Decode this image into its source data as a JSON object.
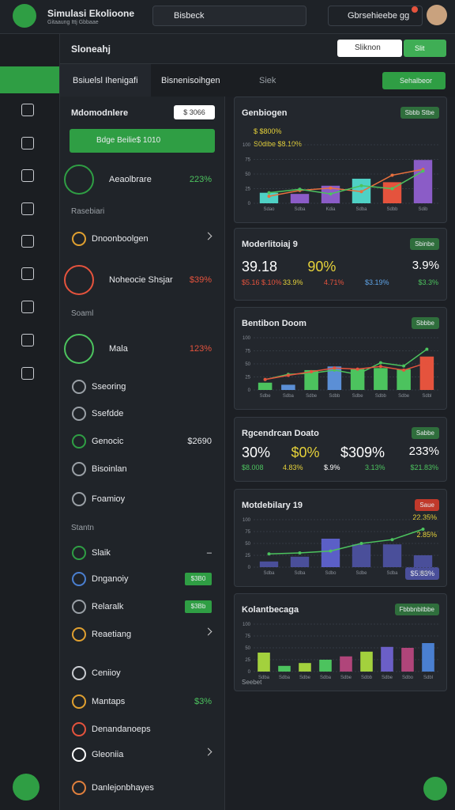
{
  "header": {
    "title": "Simulasi Ekolioone",
    "subtitle": "Gitaaung Ittj Gbbaae",
    "search": "Bisbeck",
    "account": "Gbrsehieebe gg"
  },
  "toolbar": {
    "title": "Sloneahj",
    "search": "Sliknon",
    "button": "Slit"
  },
  "tabs": [
    "Bsiuelsl Ihenigafi",
    "Bisnenisoihgen",
    "Siek"
  ],
  "tab_button": "Sehalbeor",
  "sidebar": {
    "title": "Mdomodnlere",
    "badge": "$ 3066",
    "promo": "Bdge Beilie$ 1010",
    "items": [
      {
        "label": "Aeaolbrare",
        "value": "223%",
        "color": "#4cc35e"
      },
      {
        "label": "Rasebiari",
        "section": true
      },
      {
        "label": "Dnoonboolgen"
      },
      {
        "label": "Noheocie Shsjar",
        "value": "$39%",
        "color": "#e5533d"
      },
      {
        "label": "Soaml",
        "section": true
      },
      {
        "label": "Mala",
        "value": "123%",
        "color": "#e5533d"
      },
      {
        "label": "Sseoring"
      },
      {
        "label": "Ssefdde"
      },
      {
        "label": "Genocic",
        "value": "$2690",
        "color": "#e8eaed"
      },
      {
        "label": "Bisoinlan"
      },
      {
        "label": "Foamioy"
      },
      {
        "label": "Stantn",
        "section": true
      },
      {
        "label": "Slaik",
        "value": "–",
        "color": "#e8eaed"
      },
      {
        "label": "Dnganoiy",
        "badge": "$3B0"
      },
      {
        "label": "Relaralk",
        "badge": "$3Bb"
      },
      {
        "label": "Reaetiang"
      },
      {
        "label": "Ceniioy"
      },
      {
        "label": "Mantaps",
        "value": "$3%",
        "color": "#4cc35e"
      },
      {
        "label": "Denandanoeps"
      },
      {
        "label": "Gleoniia"
      },
      {
        "label": "Danlejonbhayes"
      }
    ]
  },
  "cards": [
    {
      "title": "Genbiogen",
      "badge": "Sbbb Stbe",
      "legend": [
        "$ $800%",
        "S0dibe $8.10%"
      ],
      "chart": {
        "type": "bar",
        "categories": [
          "Sdao",
          "Sdba",
          "Kdia",
          "Sdba",
          "Sdbb",
          "Sdib"
        ],
        "values": [
          18,
          16,
          30,
          42,
          36,
          74
        ],
        "colors": [
          "#4fd1c5",
          "#8b5cc7",
          "#8b5cc7",
          "#4fd1c5",
          "#e5533d",
          "#8b5cc7"
        ],
        "lines": [
          {
            "color": "#e8703d",
            "values": [
              12,
              22,
              26,
              20,
              48,
              58
            ]
          },
          {
            "color": "#4cc35e",
            "values": [
              18,
              24,
              16,
              30,
              25,
              55
            ]
          }
        ],
        "ylim": [
          0,
          100
        ],
        "yticks": [
          0,
          25,
          50,
          75,
          100
        ]
      }
    },
    {
      "title": "Moderlitoiaj 9",
      "badge": "Sbinbe",
      "stats": [
        {
          "text": "39.18",
          "color": "#ffffff"
        },
        {
          "text": "90%",
          "color": "#e6d23a"
        },
        {
          "text": "3.9%",
          "color": "#ffffff"
        }
      ],
      "row": [
        {
          "text": "$5.16 $.10%",
          "color": "#e5533d"
        },
        {
          "text": "33.9%",
          "color": "#e6d23a"
        },
        {
          "text": "4.71%",
          "color": "#e5533d"
        },
        {
          "text": "$3.19%",
          "color": "#5ea3e6"
        },
        {
          "text": "$3.3%",
          "color": "#4cc35e"
        }
      ]
    },
    {
      "title": "Bentibon Doom",
      "badge": "Sbbbe",
      "chart": {
        "type": "bar",
        "categories": [
          "Sdbe",
          "Sdba",
          "Sdbe",
          "Sdbb",
          "Sdbe",
          "Sdbb",
          "Sdbe",
          "Sdbl"
        ],
        "values": [
          14,
          10,
          38,
          45,
          40,
          42,
          40,
          64
        ],
        "colors": [
          "#4cc35e",
          "#5b8fd6",
          "#4cc35e",
          "#5b8fd6",
          "#4cc35e",
          "#4cc35e",
          "#4cc35e",
          "#e5533d"
        ],
        "lines": [
          {
            "color": "#4cc35e",
            "values": [
              20,
              30,
              32,
              38,
              30,
              52,
              46,
              78
            ]
          },
          {
            "color": "#e5533d",
            "values": [
              20,
              28,
              35,
              42,
              40,
              45,
              38,
              52
            ]
          }
        ],
        "ylim": [
          0,
          100
        ],
        "yticks": [
          0,
          25,
          50,
          75,
          100
        ]
      }
    },
    {
      "title": "Rgcendrcan Doato",
      "badge": "Sabbe",
      "stats": [
        {
          "text": "30%",
          "color": "#ffffff"
        },
        {
          "text": "$0%",
          "color": "#e6d23a"
        },
        {
          "text": "$309%",
          "color": "#ffffff"
        },
        {
          "text": "233%",
          "color": "#ffffff"
        }
      ],
      "row": [
        {
          "text": "$8.008",
          "color": "#4cc35e"
        },
        {
          "text": "4.83%",
          "color": "#e6d23a"
        },
        {
          "text": "$.9%",
          "color": "#ffffff"
        },
        {
          "text": "3.13%",
          "color": "#4cc35e"
        },
        {
          "text": "$21.83%",
          "color": "#4cc35e"
        }
      ]
    },
    {
      "title": "Motdebilary 19",
      "badge": "Saue",
      "legend": [
        "22.35%",
        "2.85%"
      ],
      "footer": "$5.83%",
      "chart": {
        "type": "bar",
        "categories": [
          "Sdba",
          "Sdba",
          "Sdbo",
          "Sdbe",
          "Sdba",
          "Sdbl"
        ],
        "values": [
          12,
          22,
          60,
          48,
          48,
          25
        ],
        "colors": [
          "#4a4f9a",
          "#4a4f9a",
          "#5b5fc7",
          "#4a4f9a",
          "#4a4f9a",
          "#4a4f9a"
        ],
        "lines": [
          {
            "color": "#4cc35e",
            "values": [
              28,
              30,
              34,
              50,
              58,
              80
            ]
          }
        ],
        "ylim": [
          0,
          100
        ],
        "yticks": [
          0,
          25,
          50,
          75,
          100
        ]
      }
    },
    {
      "title": "Kolantbecaga",
      "badge": "Fbbbnbitbbe",
      "footer": "Seebet",
      "chart": {
        "type": "bar",
        "categories": [
          "Sdba",
          "Sdba",
          "Sdbe",
          "Sdba",
          "Sdbe",
          "Sdbb",
          "Sdbe",
          "Sdbo",
          "Sdbl"
        ],
        "values": [
          40,
          12,
          18,
          25,
          32,
          42,
          52,
          50,
          60
        ],
        "colors": [
          "#a3d13d",
          "#4cc35e",
          "#a3d13d",
          "#4cc35e",
          "#b0457a",
          "#a3d13d",
          "#6b5fc7",
          "#b0457a",
          "#4a7fd0"
        ],
        "ylim": [
          0,
          100
        ],
        "yticks": [
          0,
          25,
          50,
          75,
          100
        ]
      }
    }
  ]
}
